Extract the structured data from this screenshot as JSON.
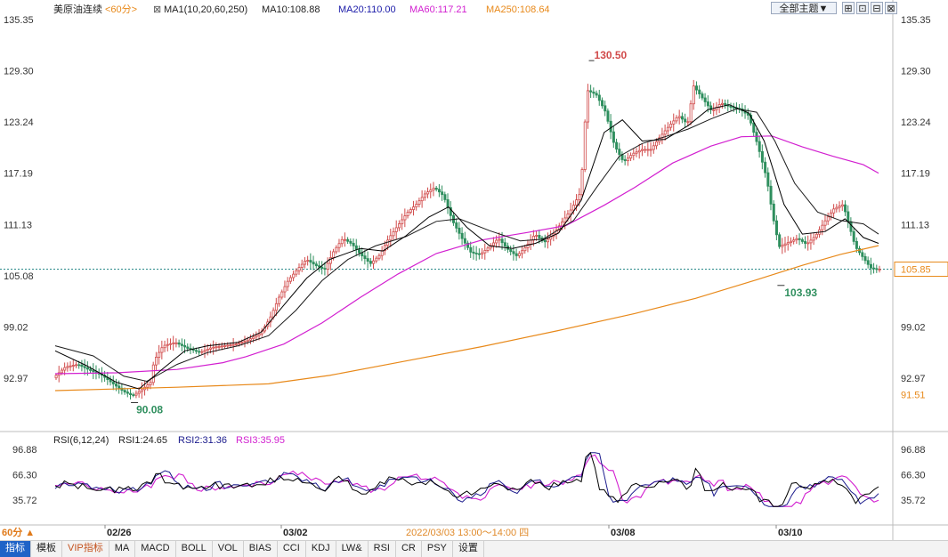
{
  "header": {
    "symbol": "美原油连续",
    "period": "<60分>",
    "ma_legend": "MA1(10,20,60,250)",
    "ma10": "MA10:108.88",
    "ma20": "MA20:110.00",
    "ma60": "MA60:117.21",
    "ma250": "MA250:108.64",
    "theme_button": "全部主题▼"
  },
  "colors": {
    "up": "#d14b4b",
    "down": "#2f8f5e",
    "ma10": "#000000",
    "ma20": "#1b1b1b",
    "ma60": "#d21fd0",
    "ma250": "#e8891a",
    "rsi1": "#000000",
    "rsi2": "#1a1a8c",
    "rsi3": "#d21fd0",
    "last_price_line": "#2a8a8a",
    "axis_text": "#333333"
  },
  "chart_data": [
    {
      "type": "candlestick",
      "title": "美原油连续 <60分>",
      "ylim": [
        88.5,
        135.35
      ],
      "y_ticks_left": [
        "135.35",
        "129.30",
        "123.24",
        "117.19",
        "111.13",
        "105.08",
        "99.02",
        "92.97"
      ],
      "y_ticks_right": [
        "135.35",
        "129.30",
        "123.24",
        "117.19",
        "111.13",
        "99.02",
        "92.97"
      ],
      "x_labels": [
        "02/26",
        "03/02",
        "03/08",
        "03/10"
      ],
      "annotations": {
        "high": "130.50",
        "low": "103.93",
        "start_low": "90.08"
      },
      "last_price": "105.85",
      "ma250_price": "91.51",
      "series": [
        {
          "name": "MA10:108.88",
          "key": "ma10"
        },
        {
          "name": "MA20:110.00",
          "key": "ma20"
        },
        {
          "name": "MA60:117.21",
          "key": "ma60"
        },
        {
          "name": "MA250:108.64",
          "key": "ma250"
        }
      ],
      "path_points": [
        [
          0,
          93.0
        ],
        [
          8,
          94.3
        ],
        [
          16,
          94.6
        ],
        [
          24,
          93.9
        ],
        [
          32,
          93.3
        ],
        [
          40,
          92.2
        ],
        [
          46,
          91.4
        ],
        [
          52,
          90.9
        ],
        [
          58,
          91.6
        ],
        [
          64,
          92.5
        ],
        [
          66,
          95.0
        ],
        [
          72,
          96.8
        ],
        [
          80,
          97.2
        ],
        [
          88,
          96.5
        ],
        [
          96,
          96.0
        ],
        [
          104,
          96.6
        ],
        [
          112,
          96.8
        ],
        [
          120,
          97.0
        ],
        [
          128,
          97.5
        ],
        [
          136,
          98.3
        ],
        [
          142,
          100.0
        ],
        [
          148,
          102.5
        ],
        [
          154,
          104.5
        ],
        [
          160,
          105.8
        ],
        [
          166,
          107.0
        ],
        [
          172,
          106.3
        ],
        [
          178,
          105.8
        ],
        [
          184,
          108.0
        ],
        [
          190,
          109.5
        ],
        [
          196,
          108.8
        ],
        [
          202,
          107.5
        ],
        [
          208,
          106.5
        ],
        [
          214,
          107.5
        ],
        [
          220,
          109.5
        ],
        [
          226,
          111.0
        ],
        [
          232,
          112.5
        ],
        [
          238,
          113.5
        ],
        [
          244,
          114.8
        ],
        [
          250,
          115.5
        ],
        [
          256,
          114.5
        ],
        [
          262,
          111.5
        ],
        [
          268,
          109.5
        ],
        [
          274,
          107.8
        ],
        [
          280,
          107.6
        ],
        [
          286,
          108.5
        ],
        [
          292,
          109.5
        ],
        [
          298,
          108.2
        ],
        [
          304,
          107.4
        ],
        [
          310,
          108.5
        ],
        [
          316,
          110.0
        ],
        [
          322,
          109.0
        ],
        [
          328,
          110.0
        ],
        [
          334,
          111.5
        ],
        [
          340,
          113.0
        ],
        [
          346,
          115.0
        ],
        [
          350,
          127.0
        ],
        [
          356,
          126.5
        ],
        [
          362,
          124.5
        ],
        [
          368,
          120.5
        ],
        [
          374,
          118.5
        ],
        [
          380,
          119.5
        ],
        [
          386,
          120.0
        ],
        [
          392,
          120.0
        ],
        [
          398,
          121.5
        ],
        [
          404,
          122.8
        ],
        [
          410,
          124.0
        ],
        [
          416,
          123.0
        ],
        [
          420,
          127.5
        ],
        [
          426,
          126.0
        ],
        [
          432,
          124.5
        ],
        [
          438,
          125.5
        ],
        [
          444,
          125.0
        ],
        [
          450,
          124.8
        ],
        [
          456,
          124.0
        ],
        [
          462,
          120.5
        ],
        [
          468,
          116.5
        ],
        [
          472,
          112.0
        ],
        [
          476,
          108.5
        ],
        [
          482,
          109.0
        ],
        [
          488,
          109.5
        ],
        [
          494,
          108.8
        ],
        [
          500,
          109.8
        ],
        [
          506,
          111.5
        ],
        [
          512,
          113.0
        ],
        [
          518,
          113.5
        ],
        [
          522,
          111.0
        ],
        [
          526,
          108.5
        ],
        [
          532,
          107.0
        ],
        [
          536,
          106.0
        ],
        [
          540,
          105.85
        ]
      ],
      "ma10_points": [
        [
          0,
          96.2
        ],
        [
          20,
          94.5
        ],
        [
          40,
          92.5
        ],
        [
          55,
          91.7
        ],
        [
          70,
          94.0
        ],
        [
          85,
          96.2
        ],
        [
          100,
          96.8
        ],
        [
          120,
          97.2
        ],
        [
          135,
          98.4
        ],
        [
          150,
          101.6
        ],
        [
          165,
          104.8
        ],
        [
          180,
          107.0
        ],
        [
          200,
          108.3
        ],
        [
          215,
          108.0
        ],
        [
          230,
          109.8
        ],
        [
          245,
          112.0
        ],
        [
          258,
          113.2
        ],
        [
          270,
          110.8
        ],
        [
          285,
          108.6
        ],
        [
          300,
          108.3
        ],
        [
          315,
          108.9
        ],
        [
          330,
          110.1
        ],
        [
          345,
          114.0
        ],
        [
          360,
          122.0
        ],
        [
          372,
          123.5
        ],
        [
          385,
          121.0
        ],
        [
          400,
          121.2
        ],
        [
          415,
          122.8
        ],
        [
          428,
          124.7
        ],
        [
          442,
          125.3
        ],
        [
          455,
          124.3
        ],
        [
          465,
          121.0
        ],
        [
          478,
          113.5
        ],
        [
          490,
          110.0
        ],
        [
          505,
          110.3
        ],
        [
          518,
          111.8
        ],
        [
          530,
          109.6
        ],
        [
          540,
          108.9
        ]
      ],
      "ma20_points": [
        [
          0,
          96.8
        ],
        [
          25,
          95.6
        ],
        [
          45,
          93.2
        ],
        [
          60,
          92.6
        ],
        [
          80,
          94.6
        ],
        [
          100,
          96.0
        ],
        [
          120,
          96.8
        ],
        [
          140,
          98.0
        ],
        [
          158,
          101.0
        ],
        [
          175,
          104.5
        ],
        [
          192,
          107.0
        ],
        [
          210,
          108.6
        ],
        [
          230,
          109.7
        ],
        [
          250,
          111.5
        ],
        [
          265,
          111.8
        ],
        [
          285,
          110.4
        ],
        [
          305,
          109.2
        ],
        [
          320,
          109.4
        ],
        [
          340,
          111.6
        ],
        [
          355,
          115.5
        ],
        [
          370,
          119.2
        ],
        [
          385,
          120.7
        ],
        [
          400,
          121.5
        ],
        [
          415,
          122.4
        ],
        [
          430,
          123.6
        ],
        [
          447,
          124.8
        ],
        [
          460,
          124.4
        ],
        [
          472,
          121.0
        ],
        [
          485,
          116.0
        ],
        [
          500,
          112.6
        ],
        [
          515,
          111.6
        ],
        [
          530,
          111.2
        ],
        [
          540,
          110.0
        ]
      ],
      "ma60_points": [
        [
          0,
          93.5
        ],
        [
          40,
          93.6
        ],
        [
          80,
          94.0
        ],
        [
          110,
          94.8
        ],
        [
          125,
          95.5
        ],
        [
          150,
          97.0
        ],
        [
          175,
          99.5
        ],
        [
          200,
          102.5
        ],
        [
          225,
          105.3
        ],
        [
          250,
          107.7
        ],
        [
          280,
          109.3
        ],
        [
          310,
          110.2
        ],
        [
          335,
          111.0
        ],
        [
          360,
          113.4
        ],
        [
          380,
          115.5
        ],
        [
          405,
          118.4
        ],
        [
          430,
          120.4
        ],
        [
          450,
          121.5
        ],
        [
          470,
          121.6
        ],
        [
          490,
          120.3
        ],
        [
          510,
          119.2
        ],
        [
          530,
          118.2
        ],
        [
          540,
          117.2
        ]
      ],
      "ma250_points": [
        [
          0,
          91.5
        ],
        [
          80,
          91.9
        ],
        [
          140,
          92.3
        ],
        [
          180,
          93.3
        ],
        [
          230,
          95.0
        ],
        [
          280,
          96.7
        ],
        [
          330,
          98.6
        ],
        [
          380,
          100.6
        ],
        [
          420,
          102.4
        ],
        [
          460,
          104.6
        ],
        [
          490,
          106.3
        ],
        [
          515,
          107.6
        ],
        [
          540,
          108.64
        ]
      ]
    },
    {
      "type": "line",
      "title": "RSI(6,12,24)",
      "ylim": [
        25,
        96.88
      ],
      "y_ticks": [
        "96.88",
        "66.30",
        "35.72"
      ],
      "cursor_label": "2022/03/03 13:00～14:00 四",
      "series": [
        {
          "name": "RSI1:24.65",
          "key": "rsi1"
        },
        {
          "name": "RSI2:31.36",
          "key": "rsi2"
        },
        {
          "name": "RSI3:35.95",
          "key": "rsi3"
        }
      ]
    }
  ],
  "period_badge": "60分 ▲",
  "bottom_tabs": [
    "指标",
    "模板",
    "VIP指标",
    "MA",
    "MACD",
    "BOLL",
    "VOL",
    "BIAS",
    "CCI",
    "KDJ",
    "LW&",
    "RSI",
    "CR",
    "PSY",
    "设置"
  ]
}
